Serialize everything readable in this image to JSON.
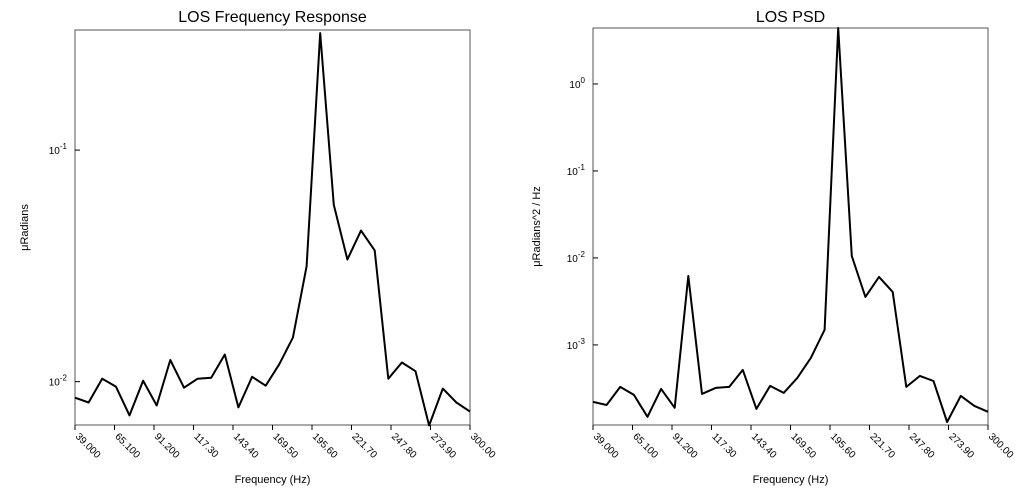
{
  "chart_data": [
    {
      "type": "line",
      "title": "LOS Frequency Response",
      "x_label": "Frequency (Hz)",
      "y_label": "μRadians",
      "log_y": true,
      "color": "#000000",
      "x": [
        39,
        48,
        57,
        66,
        75,
        84,
        93,
        102,
        111,
        120,
        129,
        138,
        147,
        156,
        165,
        174,
        183,
        192,
        201,
        210,
        219,
        228,
        237,
        246,
        255,
        264,
        273,
        282,
        291,
        300
      ],
      "values": [
        0.00853,
        0.00813,
        0.0103,
        0.00952,
        0.00715,
        0.0101,
        0.00789,
        0.0124,
        0.00942,
        0.0103,
        0.0104,
        0.0131,
        0.00774,
        0.0105,
        0.00961,
        0.0119,
        0.0155,
        0.0315,
        0.32,
        0.058,
        0.0337,
        0.0449,
        0.0369,
        0.0103,
        0.0121,
        0.0111,
        0.00647,
        0.00933,
        0.00813,
        0.00743
      ],
      "xlim": [
        39,
        300
      ],
      "ylim": [
        0.0065,
        0.33
      ],
      "xticks": [
        {
          "value": 39,
          "label": "39.000"
        },
        {
          "value": 65.1,
          "label": "65.100"
        },
        {
          "value": 91.2,
          "label": "91.200"
        },
        {
          "value": 117.3,
          "label": "117.30"
        },
        {
          "value": 143.4,
          "label": "143.40"
        },
        {
          "value": 169.5,
          "label": "169.50"
        },
        {
          "value": 195.6,
          "label": "195.60"
        },
        {
          "value": 221.7,
          "label": "221.70"
        },
        {
          "value": 247.8,
          "label": "247.80"
        },
        {
          "value": 273.9,
          "label": "273.90"
        },
        {
          "value": 300,
          "label": "300.00"
        }
      ],
      "yticks": [
        {
          "value": 0.01,
          "label": "10^-2"
        },
        {
          "value": 0.1,
          "label": "10^-1"
        }
      ]
    },
    {
      "type": "line",
      "title": "LOS PSD",
      "x_label": "Frequency (Hz)",
      "y_label": "μRadians^2 / Hz",
      "log_y": true,
      "color": "#000000",
      "x": [
        39,
        48,
        57,
        66,
        75,
        84,
        93,
        102,
        111,
        120,
        129,
        138,
        147,
        156,
        165,
        174,
        183,
        192,
        201,
        210,
        219,
        228,
        237,
        246,
        255,
        264,
        273,
        282,
        291,
        300
      ],
      "values": [
        0.000221,
        0.000204,
        0.000329,
        0.000266,
        0.000149,
        0.000312,
        0.000189,
        0.0062,
        0.000273,
        0.00032,
        0.000329,
        0.000516,
        0.000184,
        0.000338,
        0.000281,
        0.000418,
        0.00071,
        0.00149,
        4.4,
        0.0105,
        0.00356,
        0.00605,
        0.00406,
        0.000329,
        0.00044,
        0.000385,
        0.00013,
        0.000259,
        0.000199,
        0.00017
      ],
      "xlim": [
        39,
        300
      ],
      "ylim": [
        0.00012,
        4.4
      ],
      "xticks": [
        {
          "value": 39,
          "label": "39.000"
        },
        {
          "value": 65.1,
          "label": "65.100"
        },
        {
          "value": 91.2,
          "label": "91.200"
        },
        {
          "value": 117.3,
          "label": "117.30"
        },
        {
          "value": 143.4,
          "label": "143.40"
        },
        {
          "value": 169.5,
          "label": "169.50"
        },
        {
          "value": 195.6,
          "label": "195.60"
        },
        {
          "value": 221.7,
          "label": "221.70"
        },
        {
          "value": 247.8,
          "label": "247.80"
        },
        {
          "value": 273.9,
          "label": "273.90"
        },
        {
          "value": 300,
          "label": "300.00"
        }
      ],
      "yticks": [
        {
          "value": 0.001,
          "label": "10^-3"
        },
        {
          "value": 0.01,
          "label": "10^-2"
        },
        {
          "value": 0.1,
          "label": "10^-1"
        },
        {
          "value": 1,
          "label": "10^0"
        }
      ]
    }
  ]
}
